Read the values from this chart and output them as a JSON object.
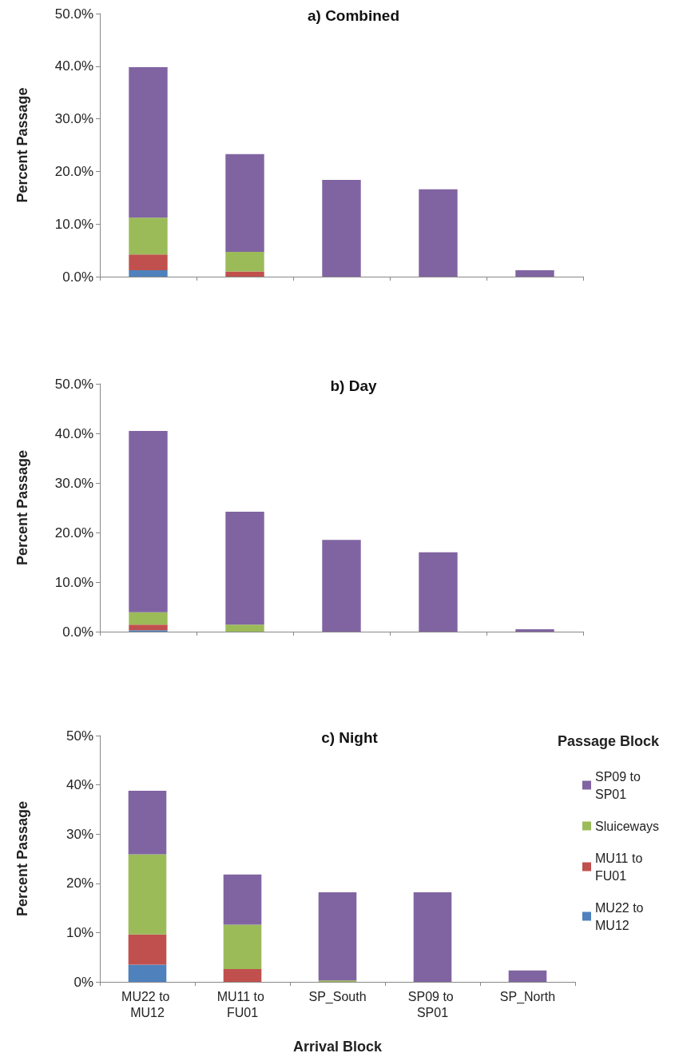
{
  "chart_data": [
    {
      "type": "bar",
      "title": "a) Combined",
      "ylabel": "Percent Passage",
      "stacked": true,
      "tick_labels": "y",
      "categories": [
        null,
        null,
        null,
        null,
        null
      ],
      "series": [
        {
          "color": "#4f81bd",
          "values": [
            1.2,
            0,
            0,
            0,
            0
          ]
        },
        {
          "color": "#c0504d",
          "values": [
            3.0,
            1.0,
            0,
            0,
            0
          ]
        },
        {
          "color": "#9bbb59",
          "values": [
            7.0,
            3.7,
            0,
            0,
            0
          ]
        },
        {
          "color": "#8064a2",
          "values": [
            28.6,
            18.6,
            18.4,
            16.6,
            1.2
          ]
        }
      ],
      "ylim": [
        0,
        50
      ],
      "yticks": [
        {
          "value": 0,
          "label": "0.0%"
        },
        {
          "value": 10,
          "label": "10.0%"
        },
        {
          "value": 20,
          "label": "20.0%"
        },
        {
          "value": 30,
          "label": "30.0%"
        },
        {
          "value": 40,
          "label": "40.0%"
        },
        {
          "value": 50,
          "label": "50.0%"
        }
      ]
    },
    {
      "type": "bar",
      "title": "b) Day",
      "ylabel": "Percent Passage",
      "stacked": true,
      "tick_labels": "y",
      "categories": [
        null,
        null,
        null,
        null,
        null
      ],
      "series": [
        {
          "color": "#4f81bd",
          "values": [
            0.3,
            0,
            0,
            0,
            0
          ]
        },
        {
          "color": "#c0504d",
          "values": [
            1.1,
            0,
            0,
            0,
            0
          ]
        },
        {
          "color": "#9bbb59",
          "values": [
            2.5,
            1.4,
            0,
            0,
            0
          ]
        },
        {
          "color": "#8064a2",
          "values": [
            36.6,
            22.8,
            18.5,
            16.0,
            0.5
          ]
        }
      ],
      "ylim": [
        0,
        50
      ],
      "yticks": [
        {
          "value": 0,
          "label": "0.0%"
        },
        {
          "value": 10,
          "label": "10.0%"
        },
        {
          "value": 20,
          "label": "20.0%"
        },
        {
          "value": 30,
          "label": "30.0%"
        },
        {
          "value": 40,
          "label": "40.0%"
        },
        {
          "value": 50,
          "label": "50.0%"
        }
      ]
    },
    {
      "type": "bar",
      "title": "c) Night",
      "ylabel": "Percent Passage",
      "xlabel": "Arrival Block",
      "stacked": true,
      "legend": "right",
      "legend_title": "Passage Block",
      "categories": [
        "MU22 to MU12",
        "MU11 to FU01",
        "SP_South",
        "SP09 to SP01",
        "SP_North"
      ],
      "series": [
        {
          "name": "MU22 to MU12",
          "color": "#4f81bd",
          "values": [
            3.5,
            0,
            0,
            0,
            0
          ]
        },
        {
          "name": "MU11 to FU01",
          "color": "#c0504d",
          "values": [
            6.1,
            2.6,
            0,
            0,
            0
          ]
        },
        {
          "name": "Sluiceways",
          "color": "#9bbb59",
          "values": [
            16.3,
            9.0,
            0.3,
            0,
            0
          ]
        },
        {
          "name": "SP09 to SP01",
          "color": "#8064a2",
          "values": [
            12.9,
            10.2,
            17.9,
            18.2,
            2.3
          ]
        }
      ],
      "ylim": [
        0,
        50
      ],
      "yticks": [
        {
          "value": 0,
          "label": "0%"
        },
        {
          "value": 10,
          "label": "10%"
        },
        {
          "value": 20,
          "label": "20%"
        },
        {
          "value": 30,
          "label": "30%"
        },
        {
          "value": 40,
          "label": "40%"
        },
        {
          "value": 50,
          "label": "50%"
        }
      ]
    }
  ]
}
